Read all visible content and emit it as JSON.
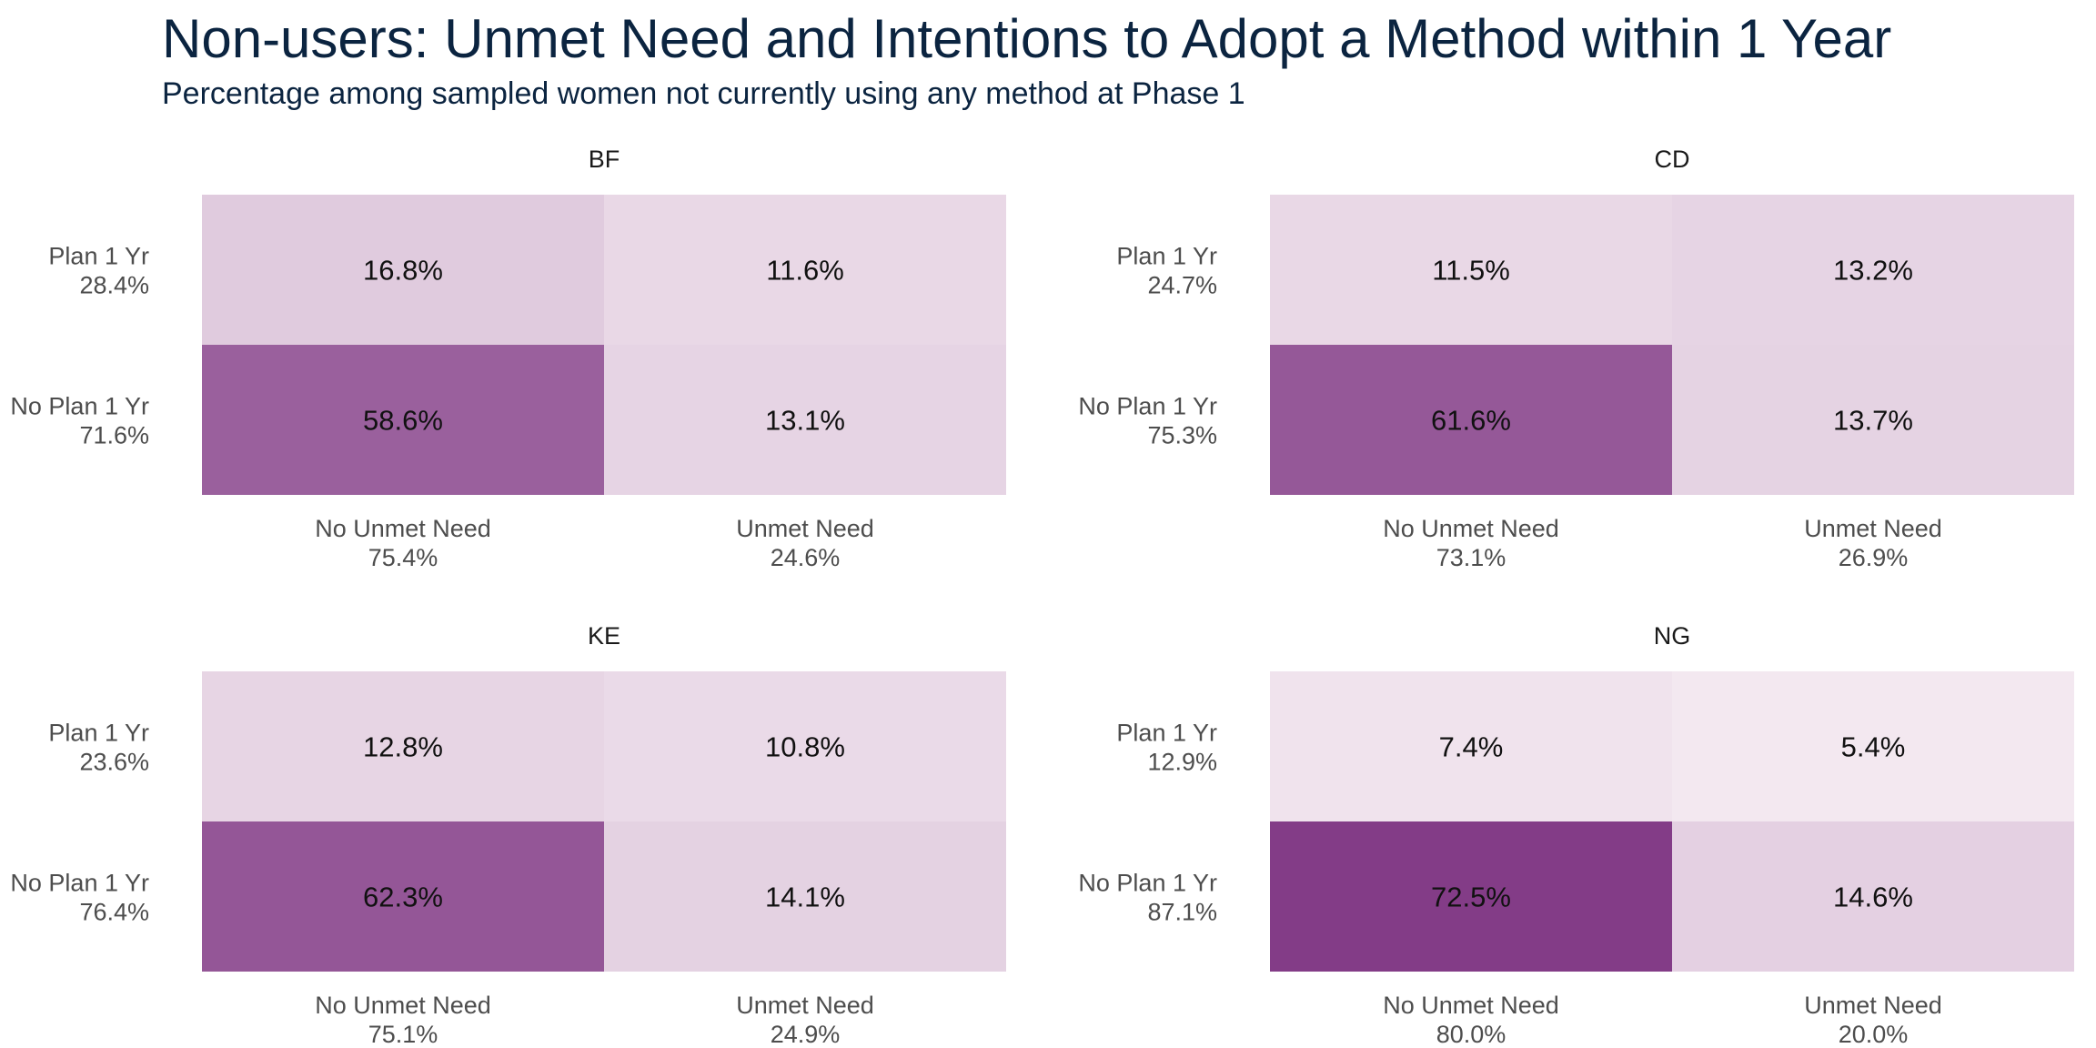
{
  "title": "Non-users: Unmet Need and Intentions to Adopt a Method within 1 Year",
  "subtitle": "Percentage among sampled women not currently using any method at Phase 1",
  "chart_data": {
    "type": "heatmap",
    "color_low": "#f3e8f0",
    "color_high": "#833c87",
    "panels": [
      {
        "name": "BF",
        "rows": [
          {
            "label": "Plan 1 Yr",
            "total": "28.4%"
          },
          {
            "label": "No Plan 1 Yr",
            "total": "71.6%"
          }
        ],
        "cols": [
          {
            "label": "No Unmet Need",
            "total": "75.4%"
          },
          {
            "label": "Unmet Need",
            "total": "24.6%"
          }
        ],
        "values": [
          [
            16.8,
            11.6
          ],
          [
            58.6,
            13.1
          ]
        ]
      },
      {
        "name": "CD",
        "rows": [
          {
            "label": "Plan 1 Yr",
            "total": "24.7%"
          },
          {
            "label": "No Plan 1 Yr",
            "total": "75.3%"
          }
        ],
        "cols": [
          {
            "label": "No Unmet Need",
            "total": "73.1%"
          },
          {
            "label": "Unmet Need",
            "total": "26.9%"
          }
        ],
        "values": [
          [
            11.5,
            13.2
          ],
          [
            61.6,
            13.7
          ]
        ]
      },
      {
        "name": "KE",
        "rows": [
          {
            "label": "Plan 1 Yr",
            "total": "23.6%"
          },
          {
            "label": "No Plan 1 Yr",
            "total": "76.4%"
          }
        ],
        "cols": [
          {
            "label": "No Unmet Need",
            "total": "75.1%"
          },
          {
            "label": "Unmet Need",
            "total": "24.9%"
          }
        ],
        "values": [
          [
            12.8,
            10.8
          ],
          [
            62.3,
            14.1
          ]
        ]
      },
      {
        "name": "NG",
        "rows": [
          {
            "label": "Plan 1 Yr",
            "total": "12.9%"
          },
          {
            "label": "No Plan 1 Yr",
            "total": "87.1%"
          }
        ],
        "cols": [
          {
            "label": "No Unmet Need",
            "total": "80.0%"
          },
          {
            "label": "Unmet Need",
            "total": "20.0%"
          }
        ],
        "values": [
          [
            7.4,
            5.4
          ],
          [
            72.5,
            14.6
          ]
        ]
      }
    ]
  }
}
